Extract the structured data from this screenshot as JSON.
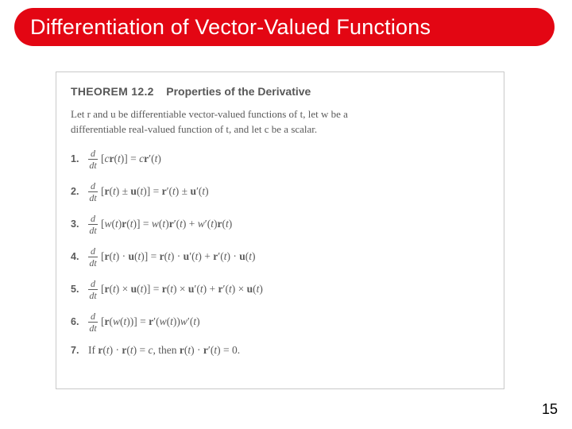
{
  "banner": {
    "title": "Differentiation of Vector-Valued Functions",
    "bg_color": "#e30613",
    "text_color": "#ffffff",
    "fontsize": 27,
    "radius": 24
  },
  "theorem": {
    "label": "THEOREM 12.2",
    "title": "Properties of the Derivative",
    "intro_line1": "Let r and u be differentiable vector-valued functions of t, let w be a",
    "intro_line2": "differentiable real-valued function of t, and let c be a scalar.",
    "rules": [
      {
        "n": "1.",
        "lhs_inner": "cr(t)",
        "rhs": "= cr′(t)"
      },
      {
        "n": "2.",
        "lhs_inner": "r(t) ± u(t)",
        "rhs": "= r′(t) ± u′(t)"
      },
      {
        "n": "3.",
        "lhs_inner": "w(t)r(t)",
        "rhs": "= w(t)r′(t) + w′(t)r(t)"
      },
      {
        "n": "4.",
        "lhs_inner": "r(t) · u(t)",
        "rhs": "= r(t) · u′(t) + r′(t) · u(t)"
      },
      {
        "n": "5.",
        "lhs_inner": "r(t) × u(t)",
        "rhs": "= r(t) × u′(t) + r′(t) × u(t)"
      },
      {
        "n": "6.",
        "lhs_inner": "r(w(t))",
        "rhs": "= r′(w(t))w′(t)"
      }
    ],
    "rule7": {
      "n": "7.",
      "text_a": "If ",
      "eq": "r(t) · r(t) = c",
      "text_b": ", then ",
      "eq2": "r(t) · r′(t) = 0."
    },
    "box_border": "#c9c9c9",
    "text_color": "#5a5a5a"
  },
  "frac": {
    "top": "d",
    "bot": "dt"
  },
  "page_number": "15"
}
